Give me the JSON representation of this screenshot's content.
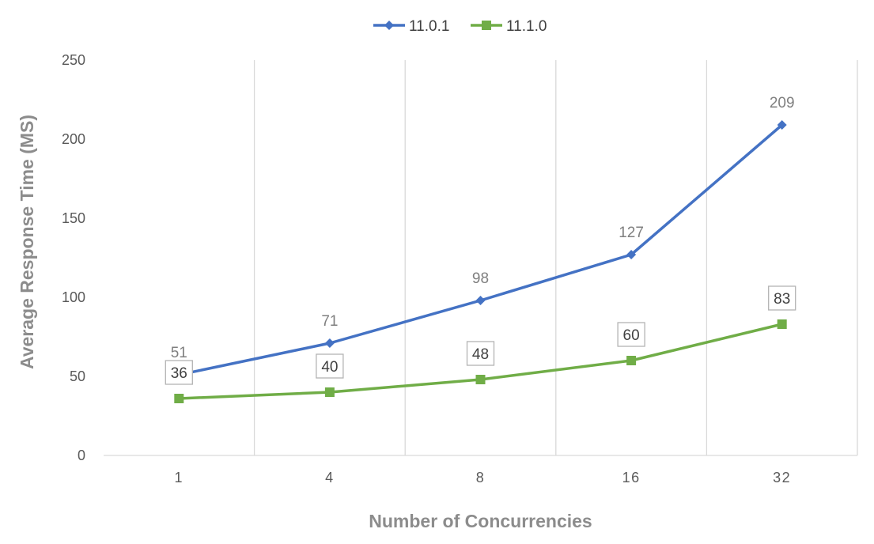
{
  "chart_data": {
    "type": "line",
    "categories": [
      "1",
      "4",
      "8",
      "16",
      "32"
    ],
    "series": [
      {
        "name": "11.0.1",
        "values": [
          51,
          71,
          98,
          127,
          209
        ],
        "color": "#4472c4",
        "marker": "diamond",
        "label_style": "plain"
      },
      {
        "name": "11.1.0",
        "values": [
          36,
          40,
          48,
          60,
          83
        ],
        "color": "#70ad47",
        "marker": "square",
        "label_style": "boxed"
      }
    ],
    "title": "",
    "xlabel": "Number of Concurrencies",
    "ylabel": "Average Response Time (MS)",
    "ylim": [
      0,
      250
    ],
    "yticks": [
      0,
      50,
      100,
      150,
      200,
      250
    ],
    "grid": "vertical",
    "legend": "top-center"
  }
}
